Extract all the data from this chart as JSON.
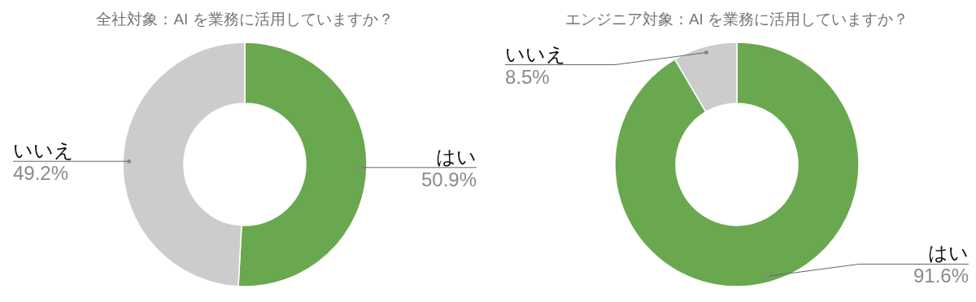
{
  "chart_data": [
    {
      "type": "donut",
      "title": "全社対象：AI を業務に活用していますか？",
      "categories": [
        "はい",
        "いいえ"
      ],
      "values": [
        50.9,
        49.2
      ],
      "value_labels": [
        "50.9%",
        "49.2%"
      ],
      "colors": [
        "#6aa84f",
        "#cccccc"
      ]
    },
    {
      "type": "donut",
      "title": "エンジニア対象：AI を業務に活用していますか？",
      "categories": [
        "はい",
        "いいえ"
      ],
      "values": [
        91.6,
        8.5
      ],
      "value_labels": [
        "91.6%",
        "8.5%"
      ],
      "colors": [
        "#6aa84f",
        "#cccccc"
      ]
    }
  ]
}
